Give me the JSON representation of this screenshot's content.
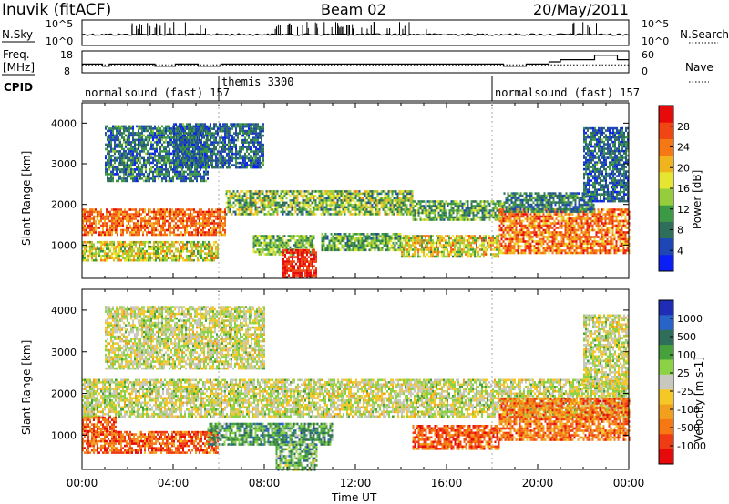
{
  "chart_data": [
    {
      "type": "line",
      "panel": "sky-noise-summary",
      "title": "Beam 02",
      "station_label": "Inuvik (fitACF)",
      "date_label": "20/May/2011",
      "left_label": "N.Sky",
      "right_label": "N.Search",
      "left_ticks": [
        "10^5",
        "10^0"
      ],
      "right_ticks": [
        "10^5",
        "10^0"
      ]
    },
    {
      "type": "line",
      "panel": "frequency-nave",
      "left_label_line1": "Freq.",
      "left_label_line2": "[MHz]",
      "right_label": "Nave",
      "left_ticks": [
        "18",
        "8"
      ],
      "right_ticks": [
        "60",
        "0"
      ],
      "freq_series": {
        "x": [
          0,
          0.6,
          0.9,
          1.2,
          2.8,
          3.2,
          3.6,
          4.1,
          4.6,
          5.1,
          5.6,
          6.1,
          18.0,
          18.5,
          19.0,
          19.5,
          20.0,
          20.5,
          21.0,
          22.0,
          22.5,
          23.2,
          23.5,
          24.0
        ],
        "y": [
          12,
          12,
          11,
          12,
          12,
          11,
          11,
          12,
          12,
          11,
          11,
          12,
          12,
          11,
          11,
          12,
          12,
          13,
          14,
          14,
          16,
          16,
          14,
          14
        ]
      },
      "nave_series": {
        "x": [
          0,
          24
        ],
        "y": [
          22,
          22
        ]
      }
    },
    {
      "type": "table",
      "panel": "cpid",
      "label": "CPID",
      "segments": [
        {
          "start": 0,
          "end": 6,
          "text": "normalsound (fast) 157"
        },
        {
          "start": 6,
          "end": 18,
          "text": "themis 3300"
        },
        {
          "start": 18,
          "end": 24,
          "text": "normalsound (fast) 157"
        }
      ]
    },
    {
      "type": "heatmap",
      "panel": "power",
      "ylabel": "Slant Range [km]",
      "ylim": [
        180,
        4500
      ],
      "yticks": [
        1000,
        2000,
        3000,
        4000
      ],
      "xlim": [
        0,
        24
      ],
      "colorbar_label": "Power [dB]",
      "colorbar_ticks": [
        4,
        8,
        12,
        16,
        20,
        24,
        28
      ],
      "colorbar_range": [
        0,
        32
      ],
      "colors": [
        "#0a1ef5",
        "#1e46b4",
        "#2f6e5a",
        "#3c9a46",
        "#96cd3c",
        "#e6e632",
        "#f0b41e",
        "#f57814",
        "#f04614",
        "#e60a0a"
      ],
      "echo_bands": [
        {
          "x0": 0,
          "x1": 6.3,
          "r0": 1250,
          "r1": 1900,
          "v0": 20,
          "v1": 30
        },
        {
          "x0": 6.3,
          "x1": 14.5,
          "r0": 1750,
          "r1": 2350,
          "v0": 6,
          "v1": 22
        },
        {
          "x0": 14.5,
          "x1": 18.5,
          "r0": 1650,
          "r1": 2100,
          "v0": 6,
          "v1": 18
        },
        {
          "x0": 0,
          "x1": 6.0,
          "r0": 600,
          "r1": 1100,
          "v0": 10,
          "v1": 24
        },
        {
          "x0": 7.5,
          "x1": 10.2,
          "r0": 750,
          "r1": 1250,
          "v0": 8,
          "v1": 18
        },
        {
          "x0": 8.8,
          "x1": 10.3,
          "r0": 200,
          "r1": 900,
          "v0": 26,
          "v1": 32
        },
        {
          "x0": 10.5,
          "x1": 14.0,
          "r0": 900,
          "r1": 1300,
          "v0": 6,
          "v1": 18
        },
        {
          "x0": 14.0,
          "x1": 18.3,
          "r0": 700,
          "r1": 1250,
          "v0": 10,
          "v1": 26
        },
        {
          "x0": 18.3,
          "x1": 24,
          "r0": 800,
          "r1": 1900,
          "v0": 18,
          "v1": 31
        },
        {
          "x0": 18.5,
          "x1": 22.5,
          "r0": 1850,
          "r1": 2300,
          "v0": 4,
          "v1": 14
        },
        {
          "x0": 1.0,
          "x1": 5.5,
          "r0": 2600,
          "r1": 3950,
          "v0": 2,
          "v1": 14
        },
        {
          "x0": 4.0,
          "x1": 8.0,
          "r0": 2900,
          "r1": 4000,
          "v0": 2,
          "v1": 12
        },
        {
          "x0": 22.0,
          "x1": 24,
          "r0": 2100,
          "r1": 3900,
          "v0": 2,
          "v1": 12
        }
      ]
    },
    {
      "type": "heatmap",
      "panel": "velocity",
      "ylabel": "Slant Range [km]",
      "ylim": [
        180,
        4500
      ],
      "yticks": [
        1000,
        2000,
        3000,
        4000
      ],
      "xlim": [
        0,
        24
      ],
      "xticks": [
        "00:00",
        "04:00",
        "08:00",
        "12:00",
        "16:00",
        "20:00",
        "00:00"
      ],
      "xlabel": "Time UT",
      "colorbar_label": "Velocity [m s-1]",
      "colorbar_ticks": [
        "1000",
        "500",
        "100",
        "25",
        "-25",
        "-100",
        "-500",
        "-1000"
      ],
      "colors": [
        "#1e2db4",
        "#2864c8",
        "#2f6e5a",
        "#46a03c",
        "#8cd246",
        "#c8c8be",
        "#f5c828",
        "#f0a01e",
        "#f57814",
        "#f03c14",
        "#e60a0a"
      ],
      "echo_bands": [
        {
          "x0": 0,
          "x1": 24,
          "r0": 1450,
          "r1": 2350,
          "v0": 5,
          "v1": 5
        },
        {
          "x0": 0,
          "x1": 6.0,
          "r0": 600,
          "r1": 1100,
          "v0": 8,
          "v1": 9
        },
        {
          "x0": 0,
          "x1": 1.5,
          "r0": 1100,
          "r1": 1450,
          "v0": 8,
          "v1": 9
        },
        {
          "x0": 5.5,
          "x1": 11.0,
          "r0": 800,
          "r1": 1300,
          "v0": 2,
          "v1": 4
        },
        {
          "x0": 8.5,
          "x1": 10.3,
          "r0": 200,
          "r1": 800,
          "v0": 2,
          "v1": 5
        },
        {
          "x0": 14.5,
          "x1": 18.3,
          "r0": 700,
          "r1": 1250,
          "v0": 8,
          "v1": 9
        },
        {
          "x0": 18.3,
          "x1": 24,
          "r0": 900,
          "r1": 1900,
          "v0": 7,
          "v1": 9
        },
        {
          "x0": 1.0,
          "x1": 8.0,
          "r0": 2600,
          "r1": 4100,
          "v0": 5,
          "v1": 5
        },
        {
          "x0": 22.0,
          "x1": 24,
          "r0": 2100,
          "r1": 3900,
          "v0": 5,
          "v1": 5
        }
      ]
    }
  ]
}
